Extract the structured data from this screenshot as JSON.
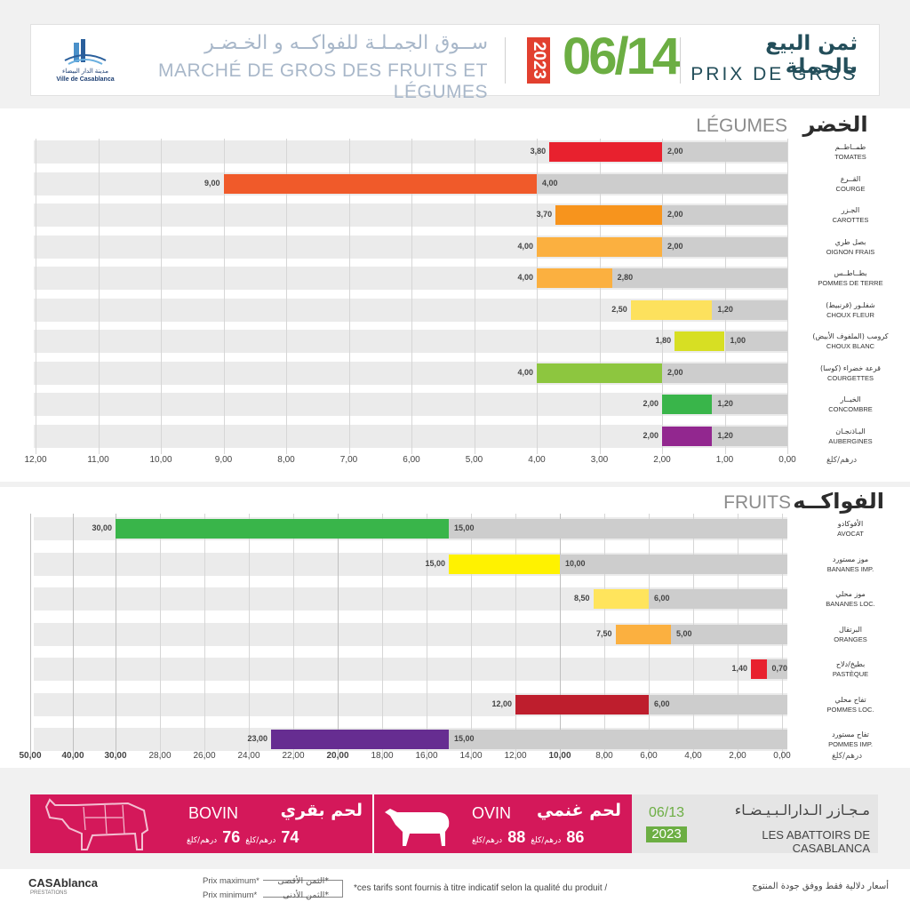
{
  "header": {
    "logo_ar": "مدينة الدار البيضاء",
    "logo_fr": "Ville de Casablanca",
    "market_ar": "ســوق الجمـلـة للفواكــه و الخـضـر",
    "market_fr": "MARCHÉ DE GROS DES FRUITS ET LÉGUMES",
    "year": "2023",
    "date": "06/14",
    "prix_ar": "ثمن البيع بالجملة",
    "prix_fr": "PRIX DE GROS"
  },
  "legumes": {
    "section_fr": "LÉGUMES",
    "section_ar": "الخضر",
    "unit": "درهم/كلغ",
    "ticks": [
      "12,00",
      "11,00",
      "10,00",
      "9,00",
      "8,00",
      "7,00",
      "6,00",
      "5,00",
      "4,00",
      "3,00",
      "2,00",
      "1,00",
      "0,00"
    ],
    "rows": [
      {
        "ar": "طمــاطــم",
        "fr": "TOMATES",
        "max": "3,80",
        "min": "2,00",
        "color": "#e8212e"
      },
      {
        "ar": "القــرع",
        "fr": "COURGE",
        "max": "9,00",
        "min": "4,00",
        "color": "#f05a2a"
      },
      {
        "ar": "الجـزر",
        "fr": "CAROTTES",
        "max": "3,70",
        "min": "2,00",
        "color": "#f7941d"
      },
      {
        "ar": "بصل طري",
        "fr": "OIGNON FRAIS",
        "max": "4,00",
        "min": "2,00",
        "color": "#fbb040"
      },
      {
        "ar": "بطــاطــس",
        "fr": "POMMES DE TERRE",
        "max": "4,00",
        "min": "2,80",
        "color": "#fbb040"
      },
      {
        "ar": "شفلـور (قرنبيط)",
        "fr": "CHOUX FLEUR",
        "max": "2,50",
        "min": "1,20",
        "color": "#fde15d"
      },
      {
        "ar": "كرومب (الملفوف الأبيض)",
        "fr": "CHOUX BLANC",
        "max": "1,80",
        "min": "1,00",
        "color": "#d7df23"
      },
      {
        "ar": "قرعة خضراء (كوسا)",
        "fr": "COURGETTES",
        "max": "4,00",
        "min": "2,00",
        "color": "#8dc63f"
      },
      {
        "ar": "الخيــار",
        "fr": "CONCOMBRE",
        "max": "2,00",
        "min": "1,20",
        "color": "#39b54a"
      },
      {
        "ar": "البـاذنجـان",
        "fr": "AUBERGINES",
        "max": "2,00",
        "min": "1,20",
        "color": "#92278f"
      }
    ]
  },
  "fruits": {
    "section_fr": "FRUITS",
    "section_ar": "الفواكــه",
    "unit": "درهم/كلغ",
    "ticks": [
      "50,00",
      "40,00",
      "30,00",
      "28,00",
      "26,00",
      "24,00",
      "22,00",
      "20,00",
      "18,00",
      "16,00",
      "14,00",
      "12,00",
      "10,00",
      "8,00",
      "6,00",
      "4,00",
      "2,00",
      "0,00"
    ],
    "rows": [
      {
        "ar": "الأفوكادو",
        "fr": "AVOCAT",
        "max": "30,00",
        "min": "15,00",
        "color": "#39b54a"
      },
      {
        "ar": "موز مستورد",
        "fr": "BANANES IMP.",
        "max": "15,00",
        "min": "10,00",
        "color": "#fff200"
      },
      {
        "ar": "موز محلي",
        "fr": "BANANES LOC.",
        "max": "8,50",
        "min": "6,00",
        "color": "#ffe45c"
      },
      {
        "ar": "البرتقال",
        "fr": "ORANGES",
        "max": "7,50",
        "min": "5,00",
        "color": "#fbb040"
      },
      {
        "ar": "بطيخ/دلاح",
        "fr": "PASTÈQUE",
        "max": "1,40",
        "min": "0,70",
        "color": "#e8212e"
      },
      {
        "ar": "تفاح محلي",
        "fr": "POMMES LOC.",
        "max": "12,00",
        "min": "6,00",
        "color": "#be1e2d"
      },
      {
        "ar": "تفاح مستورد",
        "fr": "POMMES IMP.",
        "max": "23,00",
        "min": "15,00",
        "color": "#662d91"
      }
    ]
  },
  "chart_data": [
    {
      "type": "bar",
      "title": "LÉGUMES",
      "xlabel": "درهم/كلغ",
      "categories": [
        "TOMATES",
        "COURGE",
        "CAROTTES",
        "OIGNON FRAIS",
        "POMMES DE TERRE",
        "CHOUX FLEUR",
        "CHOUX BLANC",
        "COURGETTES",
        "CONCOMBRE",
        "AUBERGINES"
      ],
      "series": [
        {
          "name": "Prix maximum",
          "values": [
            3.8,
            9.0,
            3.7,
            4.0,
            4.0,
            2.5,
            1.8,
            4.0,
            2.0,
            2.0
          ]
        },
        {
          "name": "Prix minimum",
          "values": [
            2.0,
            4.0,
            2.0,
            2.0,
            2.8,
            1.2,
            1.0,
            2.0,
            1.2,
            1.2
          ]
        }
      ],
      "xlim": [
        12,
        0
      ]
    },
    {
      "type": "bar",
      "title": "FRUITS",
      "xlabel": "درهم/كلغ",
      "categories": [
        "AVOCAT",
        "BANANES IMP.",
        "BANANES LOC.",
        "ORANGES",
        "PASTÈQUE",
        "POMMES LOC.",
        "POMMES IMP."
      ],
      "series": [
        {
          "name": "Prix maximum",
          "values": [
            30,
            15,
            8.5,
            7.5,
            1.4,
            12,
            23
          ]
        },
        {
          "name": "Prix minimum",
          "values": [
            15,
            10,
            6,
            5,
            0.7,
            6,
            15
          ]
        }
      ],
      "xlim": [
        50,
        0
      ]
    }
  ],
  "meat": {
    "bovin_fr": "BOVIN",
    "bovin_ar": "لحم بقري",
    "bovin_max": "74",
    "bovin_min": "76",
    "ovin_fr": "OVIN",
    "ovin_ar": "لحم غنمي",
    "ovin_max": "86",
    "ovin_min": "88",
    "unit": "درهم/كلغ",
    "date": "06/13",
    "year": "2023",
    "abat_ar": "مـجـازر الـدارالـبـيـضـاء",
    "abat_fr": "LES ABATTOIRS DE CASABLANCA"
  },
  "footer": {
    "brand": "CASAblanca",
    "brand_sub": "PRESTATIONS",
    "prix_max_fr": "Prix maximum*",
    "prix_min_fr": "Prix minimum*",
    "prix_max_ar": "*الثمن الأقصى",
    "prix_min_ar": "*الثمن الأدنى",
    "note_fr": "*ces tarifs sont fournis à titre indicatif selon la qualité du produit  /",
    "note_ar": "أسعار دلالية فقط ووفق جودة المنتوج"
  },
  "colors": {
    "meat": "#d4185a",
    "date": "#6cae43",
    "year": "#e2402f",
    "min_bar": "#cdcdcd"
  }
}
